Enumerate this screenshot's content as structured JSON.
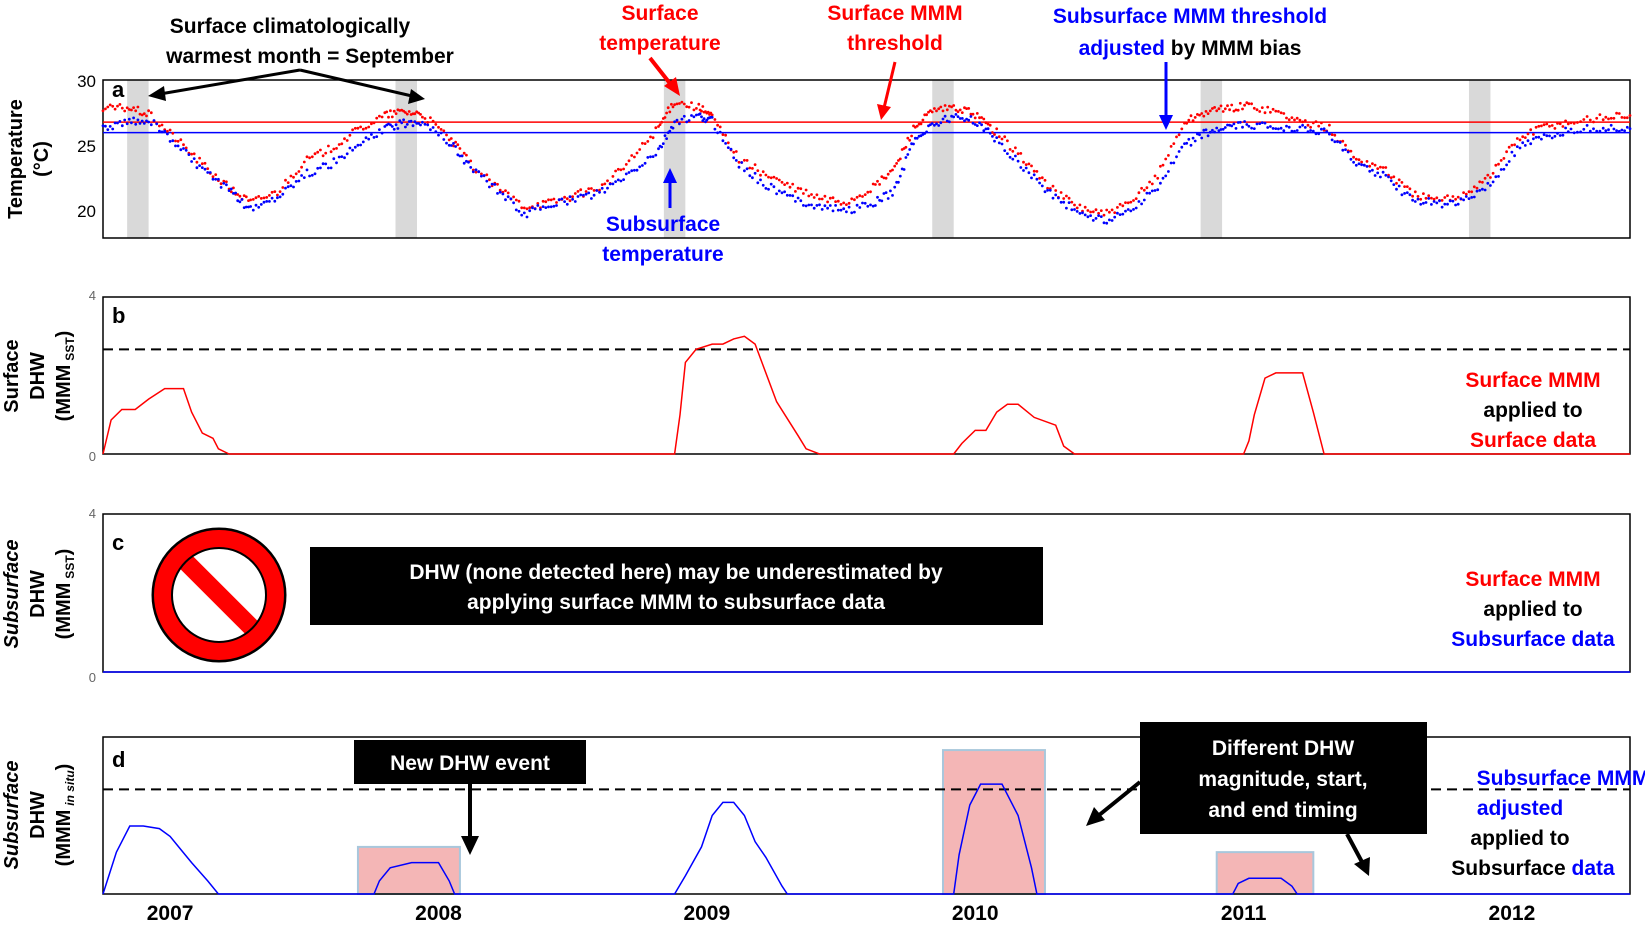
{
  "colors": {
    "surface": "#ff0000",
    "subsurface": "#0000ff",
    "text": "#000000",
    "september_band": "#d9d9d9",
    "highlight_fill": "#f4b6b6",
    "highlight_edge": "#a8c7dc",
    "threshold_dash": "#000000"
  },
  "x_axis": {
    "tick_labels": [
      "2007",
      "2008",
      "2009",
      "2010",
      "2011",
      "2012"
    ]
  },
  "panel_a": {
    "letter": "a",
    "ylabel_line1": "Temperature",
    "ylabel_line2": "(°C)",
    "yticks": [
      "30",
      "25",
      "20"
    ],
    "annotations": {
      "warmest_line1": "Surface climatologically",
      "warmest_line2": "warmest month = September",
      "surface_temp_line1": "Surface",
      "surface_temp_line2": "temperature",
      "surface_mmm_line1": "Surface MMM",
      "surface_mmm_line2": "threshold",
      "subsurface_mmm_line1": "Subsurface MMM threshold",
      "subsurface_mmm_adjusted": "adjusted",
      "subsurface_mmm_by": " by MMM bias",
      "subsurface_temp_line1": "Subsurface",
      "subsurface_temp_line2": "temperature"
    }
  },
  "panel_b": {
    "letter": "b",
    "ylabel_line1": "Surface",
    "ylabel_line2": "DHW",
    "ylabel_line3": "(MMM",
    "ylabel_sub": "SST",
    "ylabel_close": ")",
    "ytick_top": "4",
    "ytick_zero": "0",
    "note_line1": "Surface MMM",
    "note_line2": "applied to",
    "note_line3": "Surface data"
  },
  "panel_c": {
    "letter": "c",
    "ylabel_line1": "Subsurface",
    "ylabel_line2": "DHW",
    "ylabel_line3": "(MMM",
    "ylabel_sub": "SST",
    "ylabel_close": ")",
    "ytick_top": "4",
    "ytick_zero": "0",
    "callout_line1": "DHW (none detected here) may be underestimated by",
    "callout_line2": "applying surface MMM to subsurface data",
    "note_line1": "Surface MMM",
    "note_line2": "applied to",
    "note_line3": "Subsurface data"
  },
  "panel_d": {
    "letter": "d",
    "ylabel_line1": "Subsurface",
    "ylabel_line2": "DHW",
    "ylabel_line3": "(MMM",
    "ylabel_sub": "in situ",
    "ylabel_close": ")",
    "callout_new": "New DHW event",
    "callout_diff_line1": "Different DHW",
    "callout_diff_line2": "magnitude, start,",
    "callout_diff_line3": "and end timing",
    "note_line1": "Subsurface MMM",
    "note_line2": "adjusted",
    "note_line3": "applied to",
    "note_line4a": "Subsurface ",
    "note_line4b": "data"
  },
  "chart_data": [
    {
      "panel": "a",
      "type": "scatter",
      "xlabel": "",
      "ylabel": "Temperature (°C)",
      "ylim": [
        18,
        30
      ],
      "xlim": [
        2006.83,
        2012.52
      ],
      "september_bands": [
        [
          2006.92,
          2007.0
        ],
        [
          2007.92,
          2008.0
        ],
        [
          2008.92,
          2009.0
        ],
        [
          2009.92,
          2010.0
        ],
        [
          2010.92,
          2011.0
        ],
        [
          2011.92,
          2012.0
        ]
      ],
      "thresholds": [
        {
          "name": "Surface MMM threshold",
          "value": 26.8
        },
        {
          "name": "Subsurface MMM threshold adjusted by MMM bias",
          "value": 26.0
        }
      ],
      "series": [
        {
          "name": "Surface temperature",
          "x": [
            2006.83,
            2006.92,
            2007.0,
            2007.1,
            2007.2,
            2007.3,
            2007.38,
            2007.48,
            2007.58,
            2007.68,
            2007.78,
            2007.88,
            2007.95,
            2008.02,
            2008.12,
            2008.2,
            2008.3,
            2008.4,
            2008.5,
            2008.6,
            2008.7,
            2008.8,
            2008.9,
            2008.96,
            2009.05,
            2009.1,
            2009.2,
            2009.3,
            2009.4,
            2009.5,
            2009.6,
            2009.7,
            2009.78,
            2009.85,
            2009.92,
            2010.0,
            2010.08,
            2010.16,
            2010.26,
            2010.36,
            2010.46,
            2010.56,
            2010.66,
            2010.76,
            2010.86,
            2010.94,
            2011.02,
            2011.1,
            2011.2,
            2011.3,
            2011.4,
            2011.5,
            2011.6,
            2011.7,
            2011.8,
            2011.9,
            2012.0,
            2012.1,
            2012.2,
            2012.3,
            2012.42,
            2012.52
          ],
          "y": [
            27.8,
            27.9,
            27.4,
            25.6,
            23.6,
            21.8,
            20.7,
            21.5,
            23.8,
            24.8,
            26.2,
            27.3,
            27.6,
            27.4,
            25.6,
            23.6,
            21.8,
            20.4,
            20.7,
            21.3,
            22.0,
            24.0,
            26.4,
            28.4,
            27.9,
            27.2,
            24.0,
            22.8,
            21.8,
            21.0,
            20.7,
            21.8,
            23.3,
            26.3,
            27.6,
            27.9,
            27.4,
            26.0,
            24.0,
            21.8,
            20.4,
            19.8,
            20.6,
            22.8,
            26.8,
            27.6,
            27.8,
            28.1,
            27.6,
            26.8,
            26.3,
            24.0,
            23.3,
            21.5,
            20.8,
            21.3,
            22.8,
            25.5,
            26.5,
            26.8,
            27.2,
            27.3
          ]
        },
        {
          "name": "Subsurface temperature",
          "x": [
            2006.83,
            2006.92,
            2007.0,
            2007.1,
            2007.2,
            2007.3,
            2007.38,
            2007.48,
            2007.58,
            2007.68,
            2007.78,
            2007.88,
            2007.95,
            2008.02,
            2008.12,
            2008.2,
            2008.3,
            2008.4,
            2008.5,
            2008.6,
            2008.7,
            2008.8,
            2008.9,
            2008.96,
            2009.05,
            2009.1,
            2009.2,
            2009.3,
            2009.4,
            2009.5,
            2009.6,
            2009.7,
            2009.78,
            2009.85,
            2009.92,
            2010.0,
            2010.08,
            2010.16,
            2010.26,
            2010.36,
            2010.46,
            2010.56,
            2010.66,
            2010.76,
            2010.86,
            2010.94,
            2011.02,
            2011.1,
            2011.2,
            2011.3,
            2011.4,
            2011.5,
            2011.6,
            2011.7,
            2011.8,
            2011.9,
            2012.0,
            2012.1,
            2012.2,
            2012.3,
            2012.42,
            2012.52
          ],
          "y": [
            26.3,
            26.8,
            27.0,
            25.2,
            23.2,
            21.6,
            20.1,
            21.2,
            22.8,
            23.6,
            25.0,
            26.3,
            26.7,
            26.9,
            25.3,
            23.4,
            21.6,
            19.8,
            20.6,
            21.0,
            21.6,
            23.0,
            24.6,
            26.8,
            27.2,
            26.9,
            23.6,
            22.0,
            21.0,
            20.4,
            20.1,
            20.6,
            21.6,
            25.4,
            26.6,
            27.2,
            26.9,
            25.4,
            23.4,
            21.4,
            20.0,
            19.3,
            20.2,
            21.8,
            25.0,
            26.0,
            26.4,
            26.6,
            26.4,
            26.4,
            25.9,
            23.6,
            22.8,
            21.0,
            20.6,
            20.8,
            22.0,
            24.8,
            25.6,
            26.2,
            26.4,
            26.3
          ]
        }
      ]
    },
    {
      "panel": "b",
      "type": "line",
      "ylabel": "Surface DHW (MMM SST)",
      "ylim": [
        0,
        6
      ],
      "dashed_threshold": 4,
      "series": [
        {
          "name": "Surface MMM applied to Surface data",
          "x": [
            2006.83,
            2006.86,
            2006.9,
            2006.95,
            2007.0,
            2007.06,
            2007.09,
            2007.13,
            2007.16,
            2007.2,
            2007.24,
            2007.26,
            2007.3,
            2008.96,
            2008.98,
            2009.0,
            2009.04,
            2009.1,
            2009.14,
            2009.18,
            2009.22,
            2009.26,
            2009.34,
            2009.42,
            2009.45,
            2009.5,
            2010.0,
            2010.03,
            2010.08,
            2010.12,
            2010.16,
            2010.2,
            2010.24,
            2010.3,
            2010.38,
            2010.41,
            2010.45,
            2011.08,
            2011.1,
            2011.12,
            2011.16,
            2011.2,
            2011.3,
            2011.34,
            2011.38,
            2012.52
          ],
          "y": [
            0,
            1.3,
            1.7,
            1.7,
            2.1,
            2.5,
            2.5,
            2.5,
            1.6,
            0.8,
            0.6,
            0.2,
            0,
            0,
            1.5,
            3.5,
            4.0,
            4.2,
            4.2,
            4.4,
            4.5,
            4.2,
            2.0,
            0.7,
            0.2,
            0,
            0,
            0.4,
            0.9,
            0.9,
            1.6,
            1.9,
            1.9,
            1.4,
            1.1,
            0.3,
            0,
            0,
            0.5,
            1.5,
            2.9,
            3.1,
            3.1,
            1.6,
            0,
            0
          ]
        }
      ]
    },
    {
      "panel": "c",
      "type": "line",
      "ylabel": "Subsurface DHW (MMM SST)",
      "ylim": [
        0,
        6
      ],
      "series": [
        {
          "name": "Surface MMM applied to Subsurface data",
          "x": [
            2006.83,
            2012.52
          ],
          "y": [
            0,
            0
          ]
        }
      ]
    },
    {
      "panel": "d",
      "type": "line",
      "ylabel": "Subsurface DHW (MMM in situ)",
      "ylim": [
        0,
        6
      ],
      "dashed_threshold": 4,
      "highlight_boxes": [
        {
          "x": [
            2007.78,
            2008.16
          ],
          "y": [
            0,
            1.8
          ]
        },
        {
          "x": [
            2009.96,
            2010.34
          ],
          "y": [
            0,
            5.5
          ]
        },
        {
          "x": [
            2010.98,
            2011.34
          ],
          "y": [
            0,
            1.6
          ]
        }
      ],
      "series": [
        {
          "name": "Subsurface MMM adjusted applied to Subsurface data",
          "x": [
            2006.83,
            2006.88,
            2006.93,
            2006.98,
            2007.04,
            2007.08,
            2007.12,
            2007.16,
            2007.22,
            2007.26,
            2007.84,
            2007.86,
            2007.9,
            2007.98,
            2008.08,
            2008.12,
            2008.14,
            2008.96,
            2009.0,
            2009.06,
            2009.1,
            2009.14,
            2009.18,
            2009.22,
            2009.26,
            2009.3,
            2009.36,
            2009.38,
            2010.0,
            2010.02,
            2010.06,
            2010.1,
            2010.14,
            2010.18,
            2010.24,
            2010.29,
            2010.31,
            2011.04,
            2011.06,
            2011.1,
            2011.16,
            2011.22,
            2011.26,
            2011.28,
            2012.52
          ],
          "y": [
            0,
            1.6,
            2.6,
            2.6,
            2.5,
            2.2,
            1.7,
            1.2,
            0.5,
            0,
            0,
            0.5,
            1.0,
            1.2,
            1.2,
            0.5,
            0,
            0,
            0.7,
            1.8,
            3.0,
            3.5,
            3.5,
            3.0,
            2.0,
            1.4,
            0.3,
            0,
            0,
            1.5,
            3.4,
            4.2,
            4.2,
            4.2,
            3.0,
            1.0,
            0,
            0,
            0.4,
            0.6,
            0.6,
            0.6,
            0.3,
            0,
            0
          ]
        }
      ]
    }
  ]
}
